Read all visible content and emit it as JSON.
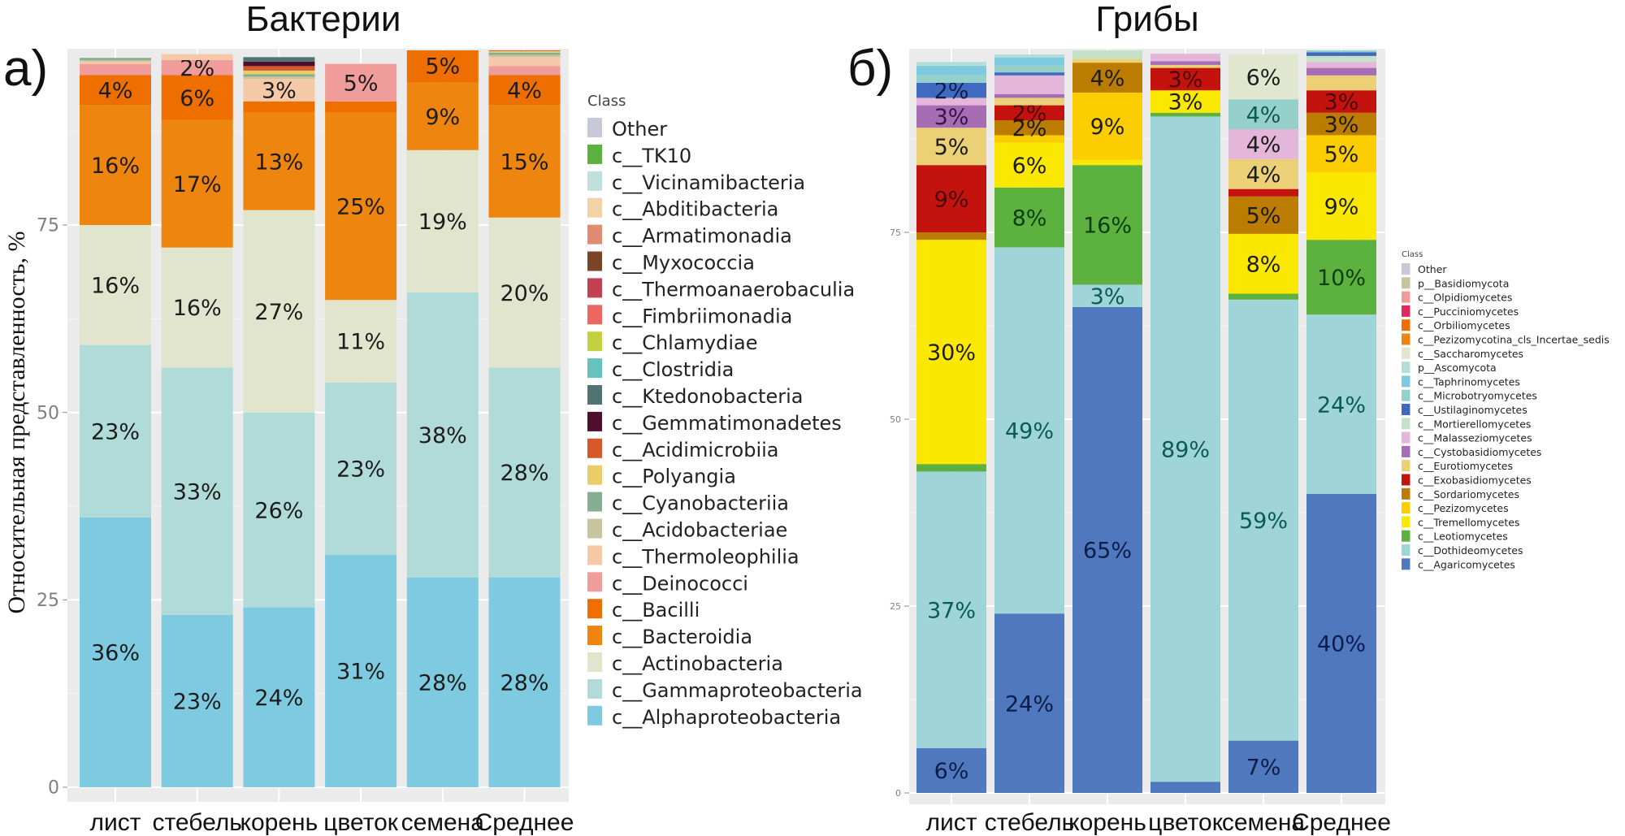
{
  "figure": {
    "y_axis_label": "Относительная представленность, %"
  },
  "chart_data": [
    {
      "type": "bar",
      "stacked": true,
      "panel_letter": "а)",
      "title": "Бактерии",
      "xlabel": "",
      "ylabel": "Относительная представленность, %",
      "categories": [
        "лист",
        "стебель",
        "корень",
        "цветок",
        "семена",
        "Среднее"
      ],
      "yticks": [
        0,
        25,
        50,
        75
      ],
      "ylim": [
        0,
        100
      ],
      "grid": true,
      "legend_title": "Class",
      "legend_position": "right",
      "series": [
        {
          "name": "c__Alphaproteobacteria",
          "color": "#7ecbe1",
          "values": [
            36,
            23,
            24,
            31,
            28,
            28
          ],
          "labels": [
            "36%",
            "23%",
            "24%",
            "31%",
            "28%",
            "28%"
          ]
        },
        {
          "name": "c__Gammaproteobacteria",
          "color": "#b1dbd8",
          "values": [
            23,
            33,
            26,
            23,
            38,
            28
          ],
          "labels": [
            "23%",
            "33%",
            "26%",
            "23%",
            "38%",
            "28%"
          ]
        },
        {
          "name": "c__Actinobacteria",
          "color": "#e1e5cd",
          "values": [
            16,
            16,
            27,
            11,
            19,
            20
          ],
          "labels": [
            "16%",
            "16%",
            "27%",
            "11%",
            "19%",
            "20%"
          ]
        },
        {
          "name": "c__Bacteroidia",
          "color": "#ee850f",
          "values": [
            16,
            17,
            13,
            25,
            9,
            15
          ],
          "labels": [
            "16%",
            "17%",
            "13%",
            "25%",
            "9%",
            "15%"
          ]
        },
        {
          "name": "c__Bacilli",
          "color": "#ee6f00",
          "values": [
            4,
            6,
            1.5,
            1.5,
            5,
            4
          ],
          "labels": [
            "4%",
            "6%",
            "",
            "",
            "5%",
            "4%"
          ]
        },
        {
          "name": "c__Deinococci",
          "color": "#f09c9a",
          "values": [
            1.5,
            2,
            0,
            5,
            0,
            1.2
          ],
          "labels": [
            "",
            "2%",
            "",
            "5%",
            "",
            ""
          ]
        },
        {
          "name": "c__Thermoleophilia",
          "color": "#f5c9a8",
          "values": [
            0.3,
            0.8,
            3,
            0,
            0,
            1.2
          ],
          "labels": [
            "",
            "",
            "3%",
            "",
            "",
            ""
          ]
        },
        {
          "name": "c__Acidobacteriae",
          "color": "#c7c5a0",
          "values": [
            0.2,
            0,
            0.3,
            0,
            0,
            0.3
          ],
          "labels": [
            "",
            "",
            "",
            "",
            "",
            ""
          ]
        },
        {
          "name": "c__Cyanobacteriia",
          "color": "#85ad92",
          "values": [
            0.3,
            0,
            0.3,
            0,
            0,
            0.3
          ],
          "labels": [
            "",
            "",
            "",
            "",
            "",
            ""
          ]
        },
        {
          "name": "c__Polyangia",
          "color": "#e9cd6a",
          "values": [
            0,
            0,
            0.5,
            0,
            0,
            0.2
          ],
          "labels": [
            "",
            "",
            "",
            "",
            "",
            ""
          ]
        },
        {
          "name": "c__Acidimicrobiia",
          "color": "#d6592c",
          "values": [
            0,
            0,
            0.6,
            0,
            0,
            0.3
          ],
          "labels": [
            "",
            "",
            "",
            "",
            "",
            ""
          ]
        },
        {
          "name": "c__Gemmatimonadetes",
          "color": "#4e0f2e",
          "values": [
            0,
            0,
            0.6,
            0,
            0,
            0
          ],
          "labels": [
            "",
            "",
            "",
            "",
            "",
            ""
          ]
        },
        {
          "name": "c__Ktedonobacteria",
          "color": "#4f7473",
          "values": [
            0,
            0,
            0.6,
            0,
            0,
            0
          ],
          "labels": [
            "",
            "",
            "",
            "",
            "",
            ""
          ]
        },
        {
          "name": "c__Clostridia",
          "color": "#66c2bc",
          "values": [
            0,
            0,
            0,
            0,
            0,
            0
          ],
          "labels": [
            "",
            "",
            "",
            "",
            "",
            ""
          ]
        },
        {
          "name": "c__Chlamydiae",
          "color": "#c4d03e",
          "values": [
            0,
            0,
            0,
            0,
            0,
            0
          ],
          "labels": [
            "",
            "",
            "",
            "",
            "",
            ""
          ]
        },
        {
          "name": "c__Fimbriimonadia",
          "color": "#ec6762",
          "values": [
            0,
            0,
            0,
            0,
            0,
            0
          ],
          "labels": [
            "",
            "",
            "",
            "",
            "",
            ""
          ]
        },
        {
          "name": "c__Thermoanaerobaculia",
          "color": "#c24152",
          "values": [
            0,
            0,
            0,
            0,
            0,
            0
          ],
          "labels": [
            "",
            "",
            "",
            "",
            "",
            ""
          ]
        },
        {
          "name": "c__Myxococcia",
          "color": "#7a4526",
          "values": [
            0,
            0,
            0,
            0,
            0,
            0
          ],
          "labels": [
            "",
            "",
            "",
            "",
            "",
            ""
          ]
        },
        {
          "name": "c__Armatimonadia",
          "color": "#df8c72",
          "values": [
            0,
            0,
            0,
            0,
            0,
            0.3
          ],
          "labels": [
            "",
            "",
            "",
            "",
            "",
            ""
          ]
        },
        {
          "name": "c__Abditibacteria",
          "color": "#f2d3a8",
          "values": [
            0,
            0,
            0,
            0,
            0,
            0
          ],
          "labels": [
            "",
            "",
            "",
            "",
            "",
            ""
          ]
        },
        {
          "name": "c__Vicinamibacteria",
          "color": "#bfe0dc",
          "values": [
            0,
            0,
            0,
            0,
            0,
            0
          ],
          "labels": [
            "",
            "",
            "",
            "",
            "",
            ""
          ]
        },
        {
          "name": "c__TK10",
          "color": "#5bb23f",
          "values": [
            0,
            0,
            0,
            0,
            0,
            0
          ],
          "labels": [
            "",
            "",
            "",
            "",
            "",
            ""
          ]
        },
        {
          "name": "Other",
          "color": "#c8c8d8",
          "values": [
            0,
            0,
            0,
            0,
            0,
            0
          ],
          "labels": [
            "",
            "",
            "",
            "",
            "",
            ""
          ]
        }
      ],
      "legend_entries": [
        "Other",
        "c__TK10",
        "c__Vicinamibacteria",
        "c__Abditibacteria",
        "c__Armatimonadia",
        "c__Myxococcia",
        "c__Thermoanaerobaculia",
        "c__Fimbriimonadia",
        "c__Chlamydiae",
        "c__Clostridia",
        "c__Ktedonobacteria",
        "c__Gemmatimonadetes",
        "c__Acidimicrobiia",
        "c__Polyangia",
        "c__Cyanobacteriia",
        "c__Acidobacteriae",
        "c__Thermoleophilia",
        "c__Deinococci",
        "c__Bacilli",
        "c__Bacteroidia",
        "c__Actinobacteria",
        "c__Gammaproteobacteria",
        "c__Alphaproteobacteria"
      ]
    },
    {
      "type": "bar",
      "stacked": true,
      "panel_letter": "б)",
      "title": "Грибы",
      "xlabel": "",
      "ylabel": "",
      "categories": [
        "лист",
        "стебель",
        "корень",
        "цветок",
        "семена",
        "Среднее"
      ],
      "yticks": [
        0,
        25,
        50,
        75
      ],
      "ylim": [
        0,
        100
      ],
      "grid": true,
      "legend_title": "Class",
      "legend_position": "right",
      "series": [
        {
          "name": "c__Agaricomycetes",
          "color": "#4f78be",
          "values": [
            6,
            24,
            65,
            1.5,
            7,
            40
          ],
          "labels": [
            "6%",
            "24%",
            "65%",
            "",
            "7%",
            "40%"
          ]
        },
        {
          "name": "c__Dothideomycetes",
          "color": "#9fd4d8",
          "values": [
            37,
            49,
            3,
            89,
            59,
            24
          ],
          "labels": [
            "37%",
            "49%",
            "3%",
            "89%",
            "59%",
            "24%"
          ]
        },
        {
          "name": "c__Leotiomycetes",
          "color": "#5db23f",
          "values": [
            1,
            8,
            16,
            0.5,
            0.8,
            10
          ],
          "labels": [
            "",
            "8%",
            "16%",
            "",
            "",
            "10%"
          ]
        },
        {
          "name": "c__Tremellomycetes",
          "color": "#fbe800",
          "values": [
            30,
            6,
            0.7,
            3,
            8,
            9
          ],
          "labels": [
            "30%",
            "6%",
            "",
            "3%",
            "8%",
            "9%"
          ]
        },
        {
          "name": "c__Pezizomycetes",
          "color": "#fccd00",
          "values": [
            0,
            1,
            9,
            0,
            0,
            5
          ],
          "labels": [
            "",
            "",
            "9%",
            "",
            "",
            "5%"
          ]
        },
        {
          "name": "c__Sordariomycetes",
          "color": "#bc7c00",
          "values": [
            1,
            2,
            4,
            0,
            5,
            3
          ],
          "labels": [
            "",
            "2%",
            "4%",
            "",
            "5%",
            "3%"
          ]
        },
        {
          "name": "c__Exobasidiomycetes",
          "color": "#c4120f",
          "values": [
            9,
            2,
            0,
            3,
            1,
            3
          ],
          "labels": [
            "9%",
            "2%",
            "",
            "3%",
            "",
            "3%"
          ]
        },
        {
          "name": "c__Eurotiomycetes",
          "color": "#ebd075",
          "values": [
            5,
            1,
            0.5,
            0.4,
            4,
            2
          ],
          "labels": [
            "5%",
            "",
            "",
            "",
            "4%",
            ""
          ]
        },
        {
          "name": "c__Cystobasidiomycetes",
          "color": "#a66db5",
          "values": [
            3,
            0.5,
            0,
            0.5,
            0,
            1
          ],
          "labels": [
            "3%",
            "",
            "",
            "",
            "",
            ""
          ]
        },
        {
          "name": "c__Malasseziomycetes",
          "color": "#e3b6da",
          "values": [
            1,
            2.5,
            0,
            1,
            4,
            0.8
          ],
          "labels": [
            "",
            "",
            "",
            "",
            "4%",
            ""
          ]
        },
        {
          "name": "c__Mortierellomycetes",
          "color": "#c5e2c8",
          "values": [
            0,
            0,
            2,
            0,
            0,
            0.8
          ],
          "labels": [
            "",
            "",
            "",
            "",
            "",
            ""
          ]
        },
        {
          "name": "c__Ustilaginomycetes",
          "color": "#4069c0",
          "values": [
            2,
            0.4,
            0,
            0,
            0,
            0.5
          ],
          "labels": [
            "2%",
            "",
            "",
            "",
            "",
            ""
          ]
        },
        {
          "name": "c__Microbotryomycetes",
          "color": "#95d0ca",
          "values": [
            1,
            1,
            0,
            0,
            4,
            0.6
          ],
          "labels": [
            "",
            "",
            "",
            "",
            "4%",
            ""
          ]
        },
        {
          "name": "c__Taphrinomycetes",
          "color": "#7ecbe1",
          "values": [
            1.3,
            1,
            0,
            0,
            0,
            0.8
          ],
          "labels": [
            "",
            "",
            "",
            "",
            "",
            ""
          ]
        },
        {
          "name": "p__Ascomycota",
          "color": "#b4dcd8",
          "values": [
            0.5,
            0.4,
            0,
            0,
            0,
            0.3
          ],
          "labels": [
            "",
            "",
            "",
            "",
            "",
            ""
          ]
        },
        {
          "name": "c__Saccharomycetes",
          "color": "#e1e6cf",
          "values": [
            0,
            0,
            0,
            0,
            6,
            0
          ],
          "labels": [
            "",
            "",
            "",
            "",
            "6%",
            ""
          ]
        },
        {
          "name": "c__Pezizomycotina_cls_Incertae_sedis",
          "color": "#ee850f",
          "values": [
            0,
            0,
            0,
            0,
            0,
            0
          ],
          "labels": [
            "",
            "",
            "",
            "",
            "",
            ""
          ]
        },
        {
          "name": "c__Orbiliomycetes",
          "color": "#ee6f00",
          "values": [
            0,
            0,
            0,
            0,
            0,
            0
          ],
          "labels": [
            "",
            "",
            "",
            "",
            "",
            ""
          ]
        },
        {
          "name": "c__Pucciniomycetes",
          "color": "#e3285d",
          "values": [
            0,
            0,
            0,
            0,
            0,
            0
          ],
          "labels": [
            "",
            "",
            "",
            "",
            "",
            ""
          ]
        },
        {
          "name": "c__Olpidiomycetes",
          "color": "#f09c9a",
          "values": [
            0,
            0,
            0,
            0,
            0,
            0
          ],
          "labels": [
            "",
            "",
            "",
            "",
            "",
            ""
          ]
        },
        {
          "name": "p__Basidiomycota",
          "color": "#c7c5a0",
          "values": [
            0,
            0,
            0,
            0,
            0,
            0
          ],
          "labels": [
            "",
            "",
            "",
            "",
            "",
            ""
          ]
        },
        {
          "name": "Other",
          "color": "#c8c8d8",
          "values": [
            0,
            0,
            0,
            0,
            0,
            0
          ],
          "labels": [
            "",
            "",
            "",
            "",
            "",
            ""
          ]
        }
      ],
      "legend_entries": [
        "Other",
        "p__Basidiomycota",
        "c__Olpidiomycetes",
        "c__Pucciniomycetes",
        "c__Orbiliomycetes",
        "c__Pezizomycotina_cls_Incertae_sedis",
        "c__Saccharomycetes",
        "p__Ascomycota",
        "c__Taphrinomycetes",
        "c__Microbotryomycetes",
        "c__Ustilaginomycetes",
        "c__Mortierellomycetes",
        "c__Malasseziomycetes",
        "c__Cystobasidiomycetes",
        "c__Eurotiomycetes",
        "c__Exobasidiomycetes",
        "c__Sordariomycetes",
        "c__Pezizomycetes",
        "c__Tremellomycetes",
        "c__Leotiomycetes",
        "c__Dothideomycetes",
        "c__Agaricomycetes"
      ]
    }
  ]
}
